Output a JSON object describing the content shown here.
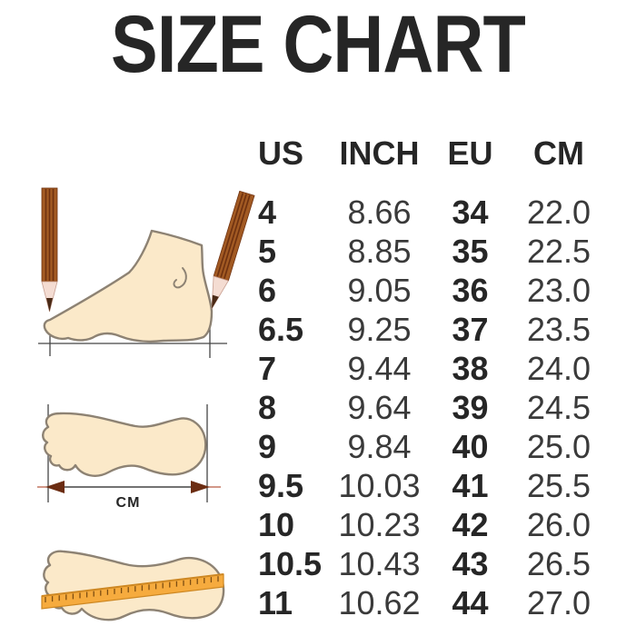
{
  "title": "SIZE CHART",
  "chart_data": {
    "type": "table",
    "title": "SIZE CHART",
    "columns": [
      "US",
      "INCH",
      "EU",
      "CM"
    ],
    "rows": [
      [
        "4",
        "8.66",
        "34",
        "22.0"
      ],
      [
        "5",
        "8.85",
        "35",
        "22.5"
      ],
      [
        "6",
        "9.05",
        "36",
        "23.0"
      ],
      [
        "6.5",
        "9.25",
        "37",
        "23.5"
      ],
      [
        "7",
        "9.44",
        "38",
        "24.0"
      ],
      [
        "8",
        "9.64",
        "39",
        "24.5"
      ],
      [
        "9",
        "9.84",
        "40",
        "25.0"
      ],
      [
        "9.5",
        "10.03",
        "41",
        "25.5"
      ],
      [
        "10",
        "10.23",
        "42",
        "26.0"
      ],
      [
        "10.5",
        "10.43",
        "43",
        "26.5"
      ],
      [
        "11",
        "10.62",
        "44",
        "27.0"
      ]
    ]
  },
  "illustration": {
    "cm_label": "CM"
  },
  "colors": {
    "background": "#ffffff",
    "text_primary": "#262626",
    "text_secondary": "#3a3a3a",
    "foot_fill": "#fbe9c9",
    "foot_outline": "#8d8273",
    "pencil_body": "#a25a23",
    "pencil_stripe": "#6e3110",
    "pencil_wood": "#f4dcd2",
    "pencil_wood_edge": "#c9a092",
    "pencil_lead": "#4a2a16",
    "guide_line": "#454545",
    "arrow_head": "#6b2c12",
    "arrow_ext": "#b3543a",
    "ruler_fill": "#f6ab3e",
    "ruler_edge": "#cd8722",
    "ruler_tick": "#7d4d12"
  }
}
